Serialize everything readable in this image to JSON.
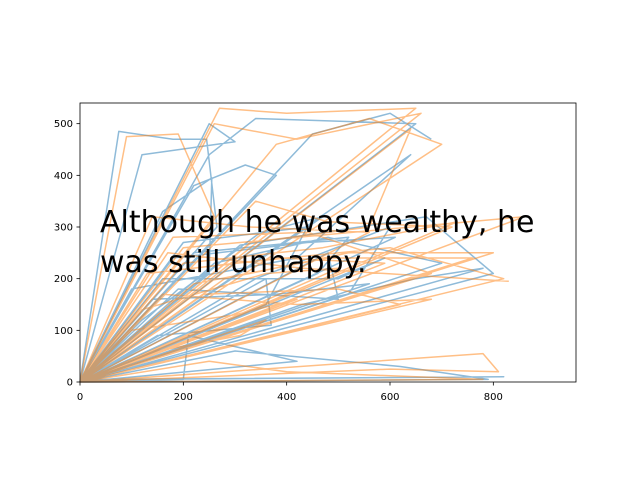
{
  "chart_data": {
    "type": "line",
    "title": "",
    "xlabel": "",
    "ylabel": "",
    "xlim": [
      0,
      960
    ],
    "ylim": [
      0,
      540
    ],
    "xticks": [
      0,
      200,
      400,
      600,
      800
    ],
    "yticks": [
      0,
      100,
      200,
      300,
      400,
      500
    ],
    "grid": false,
    "legend": "none",
    "annotation_lines": [
      "Although he was wealthy, he",
      "was still unhappy."
    ],
    "series": [
      {
        "color": "#1f77b4",
        "opacity": 0.5,
        "points": [
          [
            0,
            0
          ],
          [
            75,
            485
          ],
          [
            180,
            470
          ],
          [
            245,
            470
          ],
          [
            265,
            300
          ],
          [
            0,
            0
          ],
          [
            120,
            440
          ],
          [
            300,
            465
          ],
          [
            250,
            500
          ],
          [
            0,
            0
          ],
          [
            160,
            330
          ],
          [
            255,
            395
          ],
          [
            250,
            210
          ],
          [
            0,
            0
          ],
          [
            200,
            270
          ],
          [
            440,
            300
          ],
          [
            360,
            150
          ],
          [
            0,
            0
          ],
          [
            190,
            180
          ],
          [
            500,
            160
          ],
          [
            480,
            250
          ],
          [
            0,
            0
          ],
          [
            310,
            265
          ],
          [
            670,
            320
          ],
          [
            800,
            210
          ],
          [
            0,
            0
          ],
          [
            150,
            90
          ],
          [
            370,
            110
          ],
          [
            360,
            200
          ],
          [
            0,
            0
          ],
          [
            100,
            180
          ],
          [
            420,
            240
          ],
          [
            640,
            440
          ],
          [
            0,
            0
          ],
          [
            220,
            250
          ],
          [
            520,
            280
          ],
          [
            460,
            210
          ],
          [
            0,
            0
          ],
          [
            80,
            5
          ],
          [
            820,
            10
          ],
          [
            30,
            5
          ],
          [
            0,
            0
          ],
          [
            430,
            150
          ],
          [
            650,
            200
          ],
          [
            780,
            220
          ],
          [
            0,
            0
          ],
          [
            340,
            200
          ],
          [
            600,
            300
          ],
          [
            520,
            170
          ],
          [
            0,
            0
          ],
          [
            260,
            230
          ],
          [
            480,
            280
          ],
          [
            700,
            230
          ],
          [
            0,
            0
          ],
          [
            140,
            160
          ],
          [
            380,
            170
          ],
          [
            560,
            190
          ],
          [
            0,
            0
          ],
          [
            200,
            5
          ],
          [
            210,
            90
          ],
          [
            420,
            40
          ],
          [
            0,
            0
          ],
          [
            120,
            120
          ],
          [
            350,
            290
          ],
          [
            470,
            320
          ],
          [
            0,
            0
          ],
          [
            250,
            440
          ],
          [
            340,
            510
          ],
          [
            650,
            500
          ],
          [
            0,
            0
          ],
          [
            220,
            380
          ],
          [
            320,
            420
          ],
          [
            380,
            400
          ],
          [
            0,
            0
          ],
          [
            180,
            240
          ],
          [
            440,
            270
          ],
          [
            610,
            280
          ],
          [
            0,
            0
          ],
          [
            300,
            60
          ],
          [
            620,
            30
          ],
          [
            790,
            5
          ],
          [
            0,
            0
          ],
          [
            160,
            200
          ],
          [
            500,
            200
          ],
          [
            590,
            240
          ],
          [
            0,
            0
          ],
          [
            450,
            480
          ],
          [
            600,
            520
          ],
          [
            680,
            470
          ]
        ]
      },
      {
        "color": "#ff7f0e",
        "opacity": 0.5,
        "points": [
          [
            0,
            0
          ],
          [
            90,
            475
          ],
          [
            190,
            480
          ],
          [
            260,
            320
          ],
          [
            0,
            0
          ],
          [
            270,
            530
          ],
          [
            400,
            520
          ],
          [
            650,
            530
          ],
          [
            0,
            0
          ],
          [
            140,
            320
          ],
          [
            330,
            300
          ],
          [
            560,
            290
          ],
          [
            0,
            0
          ],
          [
            200,
            260
          ],
          [
            640,
            300
          ],
          [
            860,
            320
          ],
          [
            0,
            0
          ],
          [
            300,
            230
          ],
          [
            600,
            260
          ],
          [
            820,
            200
          ],
          [
            0,
            0
          ],
          [
            160,
            170
          ],
          [
            420,
            150
          ],
          [
            680,
            160
          ],
          [
            0,
            0
          ],
          [
            250,
            40
          ],
          [
            400,
            20
          ],
          [
            780,
            5
          ],
          [
            0,
            0
          ],
          [
            120,
            140
          ],
          [
            360,
            210
          ],
          [
            500,
            220
          ],
          [
            0,
            0
          ],
          [
            220,
            190
          ],
          [
            480,
            240
          ],
          [
            760,
            240
          ],
          [
            0,
            0
          ],
          [
            330,
            270
          ],
          [
            560,
            300
          ],
          [
            640,
            490
          ],
          [
            0,
            0
          ],
          [
            100,
            100
          ],
          [
            300,
            130
          ],
          [
            420,
            160
          ],
          [
            0,
            0
          ],
          [
            180,
            280
          ],
          [
            440,
            290
          ],
          [
            680,
            210
          ],
          [
            0,
            0
          ],
          [
            280,
            200
          ],
          [
            520,
            250
          ],
          [
            800,
            250
          ],
          [
            0,
            0
          ],
          [
            380,
            460
          ],
          [
            560,
            510
          ],
          [
            700,
            460
          ],
          [
            0,
            0
          ],
          [
            150,
            60
          ],
          [
            310,
            90
          ],
          [
            360,
            120
          ],
          [
            0,
            0
          ],
          [
            200,
            230
          ],
          [
            470,
            260
          ],
          [
            730,
            310
          ],
          [
            0,
            0
          ],
          [
            240,
            170
          ],
          [
            500,
            180
          ],
          [
            620,
            150
          ],
          [
            0,
            0
          ],
          [
            340,
            350
          ],
          [
            480,
            310
          ],
          [
            720,
            300
          ],
          [
            0,
            0
          ],
          [
            600,
            25
          ],
          [
            810,
            20
          ],
          [
            780,
            55
          ],
          [
            0,
            0
          ],
          [
            130,
            210
          ],
          [
            390,
            240
          ],
          [
            590,
            230
          ],
          [
            0,
            0
          ],
          [
            260,
            500
          ],
          [
            420,
            470
          ],
          [
            660,
            520
          ],
          [
            0,
            0
          ],
          [
            170,
            250
          ],
          [
            430,
            220
          ],
          [
            830,
            195
          ]
        ]
      }
    ]
  }
}
